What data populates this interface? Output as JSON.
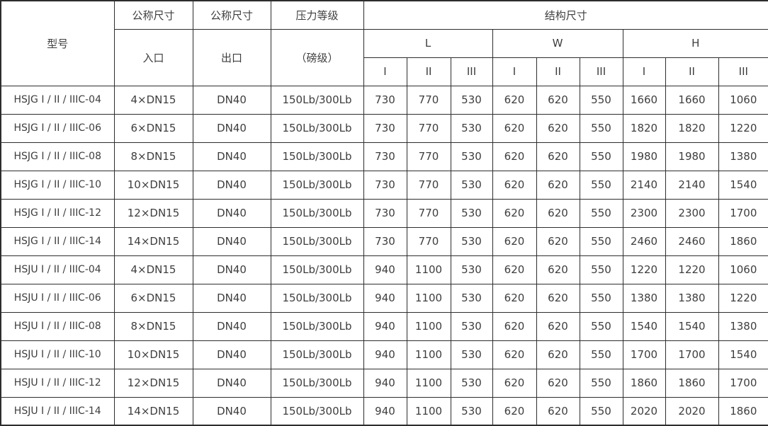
{
  "colors": {
    "border": "#2d2d2d",
    "text": "#3e3e3e",
    "background": "#ffffff"
  },
  "table": {
    "header": {
      "model": "型号",
      "nominal_inlet_top": "公称尺寸",
      "inlet": "入口",
      "nominal_outlet_top": "公称尺寸",
      "outlet": "出口",
      "pressure_top": "压力等级",
      "pressure_sub": "（磅级）",
      "structure": "结构尺寸",
      "groups": [
        "L",
        "W",
        "H"
      ],
      "subcols": [
        "I",
        "II",
        "III"
      ]
    },
    "rows": [
      {
        "cells": [
          "HSJG I / II / IIIC-04",
          "4×DN15",
          "DN40",
          "150Lb/300Lb",
          "730",
          "770",
          "530",
          "620",
          "620",
          "550",
          "1660",
          "1660",
          "1060"
        ]
      },
      {
        "cells": [
          "HSJG I / II / IIIC-06",
          "6×DN15",
          "DN40",
          "150Lb/300Lb",
          "730",
          "770",
          "530",
          "620",
          "620",
          "550",
          "1820",
          "1820",
          "1220"
        ]
      },
      {
        "cells": [
          "HSJG I / II / IIIC-08",
          "8×DN15",
          "DN40",
          "150Lb/300Lb",
          "730",
          "770",
          "530",
          "620",
          "620",
          "550",
          "1980",
          "1980",
          "1380"
        ]
      },
      {
        "cells": [
          "HSJG I / II / IIIC-10",
          "10×DN15",
          "DN40",
          "150Lb/300Lb",
          "730",
          "770",
          "530",
          "620",
          "620",
          "550",
          "2140",
          "2140",
          "1540"
        ]
      },
      {
        "cells": [
          "HSJG I / II / IIIC-12",
          "12×DN15",
          "DN40",
          "150Lb/300Lb",
          "730",
          "770",
          "530",
          "620",
          "620",
          "550",
          "2300",
          "2300",
          "1700"
        ]
      },
      {
        "cells": [
          "HSJG I / II / IIIC-14",
          "14×DN15",
          "DN40",
          "150Lb/300Lb",
          "730",
          "770",
          "530",
          "620",
          "620",
          "550",
          "2460",
          "2460",
          "1860"
        ]
      },
      {
        "cells": [
          "HSJU I / II / IIIC-04",
          "4×DN15",
          "DN40",
          "150Lb/300Lb",
          "940",
          "1100",
          "530",
          "620",
          "620",
          "550",
          "1220",
          "1220",
          "1060"
        ]
      },
      {
        "cells": [
          "HSJU I / II / IIIC-06",
          "6×DN15",
          "DN40",
          "150Lb/300Lb",
          "940",
          "1100",
          "530",
          "620",
          "620",
          "550",
          "1380",
          "1380",
          "1220"
        ]
      },
      {
        "cells": [
          "HSJU I / II / IIIC-08",
          "8×DN15",
          "DN40",
          "150Lb/300Lb",
          "940",
          "1100",
          "530",
          "620",
          "620",
          "550",
          "1540",
          "1540",
          "1380"
        ]
      },
      {
        "cells": [
          "HSJU I / II / IIIC-10",
          "10×DN15",
          "DN40",
          "150Lb/300Lb",
          "940",
          "1100",
          "530",
          "620",
          "620",
          "550",
          "1700",
          "1700",
          "1540"
        ]
      },
      {
        "cells": [
          "HSJU I / II / IIIC-12",
          "12×DN15",
          "DN40",
          "150Lb/300Lb",
          "940",
          "1100",
          "530",
          "620",
          "620",
          "550",
          "1860",
          "1860",
          "1700"
        ]
      },
      {
        "cells": [
          "HSJU I / II / IIIC-14",
          "14×DN15",
          "DN40",
          "150Lb/300Lb",
          "940",
          "1100",
          "530",
          "620",
          "620",
          "550",
          "2020",
          "2020",
          "1860"
        ]
      }
    ]
  }
}
